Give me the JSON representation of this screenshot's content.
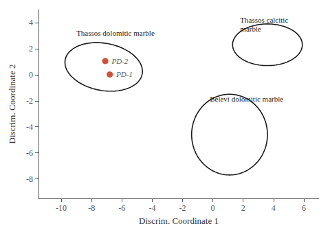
{
  "chart_data": {
    "type": "scatter",
    "xlabel": "Discrim. Coordinate 1",
    "ylabel": "Discrim. Coordinate 2",
    "xlim": [
      -11.5,
      7
    ],
    "ylim": [
      -9.5,
      5
    ],
    "xticks": [
      -10,
      -8,
      -6,
      -4,
      -2,
      0,
      2,
      4,
      6
    ],
    "yticks": [
      -8,
      -6,
      -4,
      -2,
      0,
      2,
      4
    ],
    "grid": false,
    "points": [
      {
        "x": -7.1,
        "y": 1.05,
        "label": "PD-2",
        "color": "#cc2200"
      },
      {
        "x": -6.8,
        "y": 0.02,
        "label": "PD-1",
        "color": "#cc2200"
      }
    ],
    "ellipses": [
      {
        "label": "Thassos dolomitic marble",
        "label_x": -9.0,
        "label_y": 3.55,
        "cx": -7.2,
        "cy": 0.6,
        "width": 5.2,
        "height": 3.6,
        "angle": -15,
        "color": "#1a1a1a"
      },
      {
        "label": "Thassos calcitic\nmarble",
        "label_x": 1.8,
        "label_y": 4.55,
        "cx": 3.6,
        "cy": 2.3,
        "width": 4.6,
        "height": 3.2,
        "angle": 0,
        "color": "#1a1a1a"
      },
      {
        "label": "Belevi dolomitic marble",
        "label_x": -0.2,
        "label_y": -1.5,
        "cx": 1.1,
        "cy": -4.6,
        "width": 5.0,
        "height": 6.2,
        "angle": 0,
        "color": "#1a1a1a"
      }
    ]
  }
}
